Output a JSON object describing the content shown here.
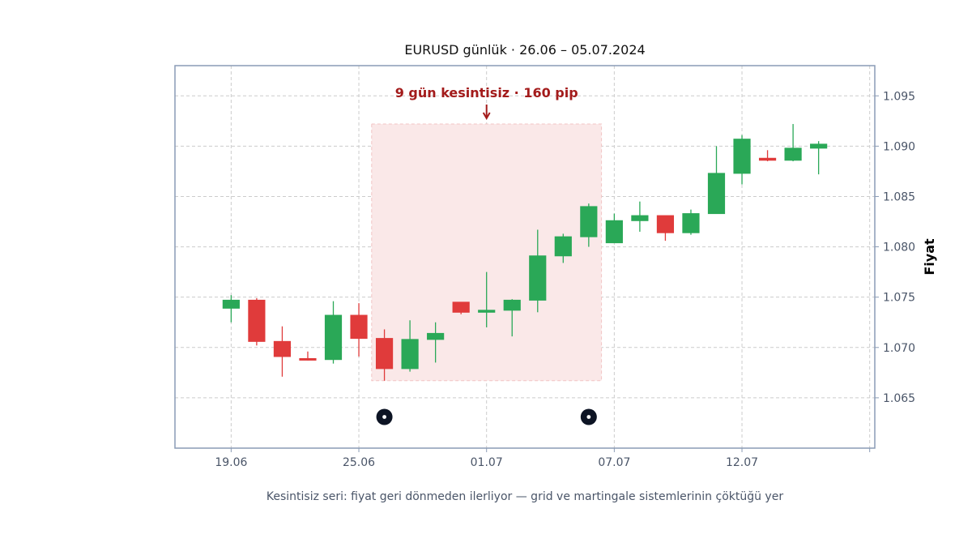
{
  "chart_data": {
    "type": "candlestick",
    "title": "EURUSD günlük · 26.06 – 05.07.2024",
    "ylabel": "Fiyat",
    "xlabel": "",
    "caption": "Kesintisiz seri: fiyat geri dönmeden ilerliyor — grid ve martingale sistemlerinin çöktüğü yer",
    "ylim": [
      1.06,
      1.098
    ],
    "yticks": [
      "1.065",
      "1.070",
      "1.075",
      "1.080",
      "1.085",
      "1.090",
      "1.095"
    ],
    "xticks": [
      {
        "label": "19.06",
        "index": 0
      },
      {
        "label": "25.06",
        "index": 5
      },
      {
        "label": "01.07",
        "index": 10
      },
      {
        "label": "07.07",
        "index": 15
      },
      {
        "label": "12.07",
        "index": 20
      },
      {
        "label": "",
        "index": 25
      }
    ],
    "xlim": [
      -2.2,
      25.2
    ],
    "grid": true,
    "colors": {
      "up": "#2aa857",
      "down": "#e03b3b",
      "frame": "#8a9bb5",
      "highlight": "#fae8e8",
      "annotation": "#a31b1b",
      "marker": "#0d1424"
    },
    "candles": [
      {
        "open": 1.0739,
        "high": 1.0752,
        "low": 1.0725,
        "close": 1.0747
      },
      {
        "open": 1.0747,
        "high": 1.0749,
        "low": 1.0702,
        "close": 1.0706
      },
      {
        "open": 1.0706,
        "high": 1.0721,
        "low": 1.0671,
        "close": 1.0691
      },
      {
        "open": 1.0689,
        "high": 1.0696,
        "low": 1.0687,
        "close": 1.0688
      },
      {
        "open": 1.0688,
        "high": 1.0746,
        "low": 1.0684,
        "close": 1.0732
      },
      {
        "open": 1.0732,
        "high": 1.0744,
        "low": 1.0691,
        "close": 1.0709
      },
      {
        "open": 1.0709,
        "high": 1.0718,
        "low": 1.0667,
        "close": 1.0679
      },
      {
        "open": 1.0679,
        "high": 1.0727,
        "low": 1.0676,
        "close": 1.0708
      },
      {
        "open": 1.0708,
        "high": 1.0725,
        "low": 1.0685,
        "close": 1.0714
      },
      {
        "open": 1.0745,
        "high": 1.0745,
        "low": 1.0733,
        "close": 1.0735
      },
      {
        "open": 1.0735,
        "high": 1.0775,
        "low": 1.072,
        "close": 1.0737
      },
      {
        "open": 1.0737,
        "high": 1.0748,
        "low": 1.0711,
        "close": 1.0747
      },
      {
        "open": 1.0747,
        "high": 1.0817,
        "low": 1.0735,
        "close": 1.0791
      },
      {
        "open": 1.0791,
        "high": 1.0813,
        "low": 1.0784,
        "close": 1.081
      },
      {
        "open": 1.081,
        "high": 1.0843,
        "low": 1.08,
        "close": 1.084
      },
      {
        "open": 1.0804,
        "high": 1.0833,
        "low": 1.0804,
        "close": 1.0826
      },
      {
        "open": 1.0826,
        "high": 1.0845,
        "low": 1.0815,
        "close": 1.0831
      },
      {
        "open": 1.0831,
        "high": 1.0831,
        "low": 1.0806,
        "close": 1.0814
      },
      {
        "open": 1.0814,
        "high": 1.0837,
        "low": 1.0812,
        "close": 1.0833
      },
      {
        "open": 1.0833,
        "high": 1.09,
        "low": 1.0833,
        "close": 1.0873
      },
      {
        "open": 1.0873,
        "high": 1.0911,
        "low": 1.0862,
        "close": 1.0907
      },
      {
        "open": 1.0888,
        "high": 1.0896,
        "low": 1.0885,
        "close": 1.0886
      },
      {
        "open": 1.0886,
        "high": 1.0922,
        "low": 1.0885,
        "close": 1.0898
      },
      {
        "open": 1.0898,
        "high": 1.0905,
        "low": 1.0872,
        "close": 1.0902
      }
    ],
    "highlight": {
      "x_from": 5.5,
      "x_to": 14.5,
      "y_from": 1.0667,
      "y_to": 1.0922
    },
    "annotation": {
      "text": "9 gün kesintisiz · 160 pip",
      "index": 10
    },
    "markers": [
      {
        "index": 6,
        "y": 1.0631
      },
      {
        "index": 14,
        "y": 1.0631
      }
    ]
  }
}
